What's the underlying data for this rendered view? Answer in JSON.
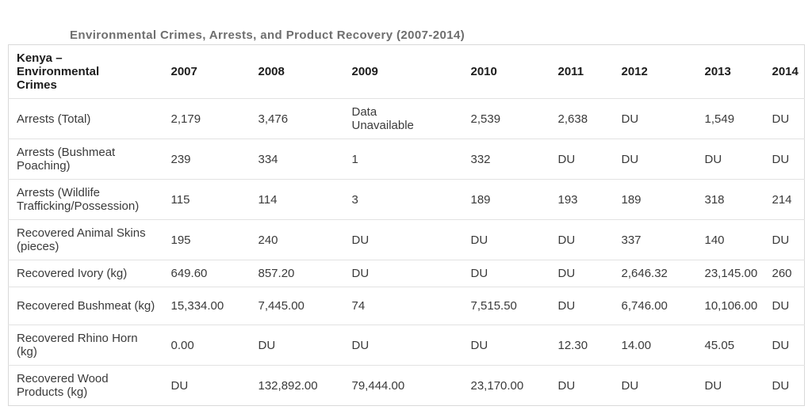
{
  "title": "Environmental Crimes, Arrests, and Product Recovery (2007-2014)",
  "table": {
    "corner_header": "Kenya –\nEnvironmental\nCrimes",
    "year_headers": [
      "2007",
      "2008",
      "2009",
      "2010",
      "2011",
      "2012",
      "2013",
      "2014"
    ],
    "rows": [
      {
        "label": "Arrests (Total)",
        "values": [
          "2,179",
          "3,476",
          "Data\nUnavailable",
          "2,539",
          "2,638",
          "DU",
          "1,549",
          "DU"
        ]
      },
      {
        "label": "Arrests (Bushmeat Poaching)",
        "values": [
          "239",
          "334",
          "1",
          "332",
          "DU",
          "DU",
          "DU",
          "DU"
        ]
      },
      {
        "label": "Arrests (Wildlife Trafficking/Possession)",
        "values": [
          "115",
          "114",
          "3",
          "189",
          "193",
          "189",
          "318",
          "214"
        ]
      },
      {
        "label": "Recovered Animal Skins (pieces)",
        "values": [
          "195",
          "240",
          "DU",
          "DU",
          "DU",
          "337",
          "140",
          "DU"
        ]
      },
      {
        "label": "Recovered Ivory (kg)",
        "values": [
          "649.60",
          "857.20",
          "DU",
          "DU",
          "DU",
          "2,646.32",
          "23,145.00",
          "260"
        ]
      },
      {
        "label": "Recovered Bushmeat (kg)",
        "values": [
          "15,334.00",
          "7,445.00",
          "74",
          "7,515.50",
          "DU",
          "6,746.00",
          "10,106.00",
          "DU"
        ]
      },
      {
        "label": "Recovered Rhino Horn (kg)",
        "values": [
          "0.00",
          "DU",
          "DU",
          "DU",
          "12.30",
          "14.00",
          "45.05",
          "DU"
        ]
      },
      {
        "label": "Recovered Wood Products (kg)",
        "values": [
          "DU",
          "132,892.00",
          "79,444.00",
          "23,170.00",
          "DU",
          "DU",
          "DU",
          "DU"
        ]
      }
    ]
  },
  "colors": {
    "background": "#ffffff",
    "title_text": "#6e6e6e",
    "header_text": "#1c1c1c",
    "body_text": "#3a3a3a",
    "border": "#d9d9d9",
    "row_separator": "#e2e2e2"
  }
}
